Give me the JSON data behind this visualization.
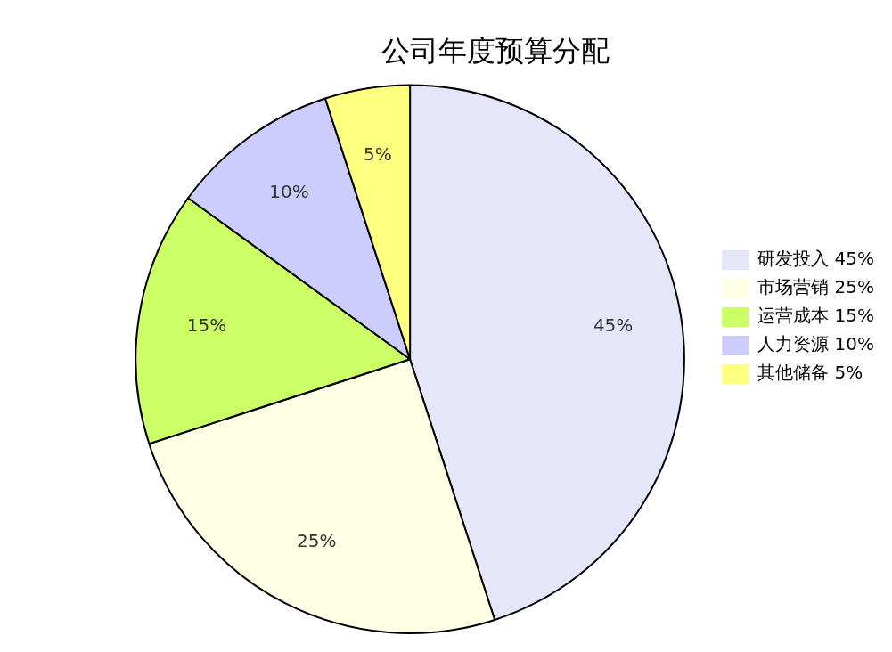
{
  "chart_data": {
    "type": "pie",
    "title": "公司年度预算分配",
    "categories": [
      "研发投入",
      "市场营销",
      "运营成本",
      "人力资源",
      "其他储备"
    ],
    "values": [
      45,
      25,
      15,
      10,
      5
    ],
    "value_labels": [
      "45%",
      "25%",
      "15%",
      "10%",
      "5%"
    ],
    "colors": [
      "#e6e6fa",
      "#ffffe6",
      "#ccff66",
      "#ccccff",
      "#ffff80"
    ],
    "legend": "right"
  }
}
